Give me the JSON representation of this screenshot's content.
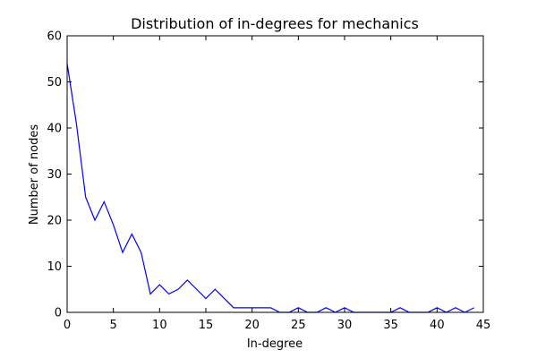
{
  "chart_data": {
    "type": "line",
    "title": "Distribution of in-degrees for mechanics",
    "xlabel": "In-degree",
    "ylabel": "Number of nodes",
    "xlim": [
      0,
      45
    ],
    "ylim": [
      0,
      60
    ],
    "xticks": [
      0,
      5,
      10,
      15,
      20,
      25,
      30,
      35,
      40,
      45
    ],
    "yticks": [
      0,
      10,
      20,
      30,
      40,
      50,
      60
    ],
    "grid": false,
    "series": [
      {
        "color": "#0000ff",
        "x": [
          0,
          1,
          2,
          3,
          4,
          5,
          6,
          7,
          8,
          9,
          10,
          11,
          12,
          13,
          14,
          15,
          16,
          17,
          18,
          19,
          20,
          21,
          22,
          23,
          24,
          25,
          26,
          27,
          28,
          29,
          30,
          31,
          32,
          33,
          34,
          35,
          36,
          37,
          38,
          39,
          40,
          41,
          42,
          43,
          44
        ],
        "y": [
          54,
          41,
          25,
          20,
          24,
          19,
          13,
          17,
          13,
          4,
          6,
          4,
          5,
          7,
          5,
          3,
          5,
          3,
          1,
          1,
          1,
          1,
          1,
          0,
          0,
          1,
          0,
          0,
          1,
          0,
          1,
          0,
          0,
          0,
          0,
          0,
          1,
          0,
          0,
          0,
          1,
          0,
          1,
          0,
          1
        ]
      }
    ]
  }
}
